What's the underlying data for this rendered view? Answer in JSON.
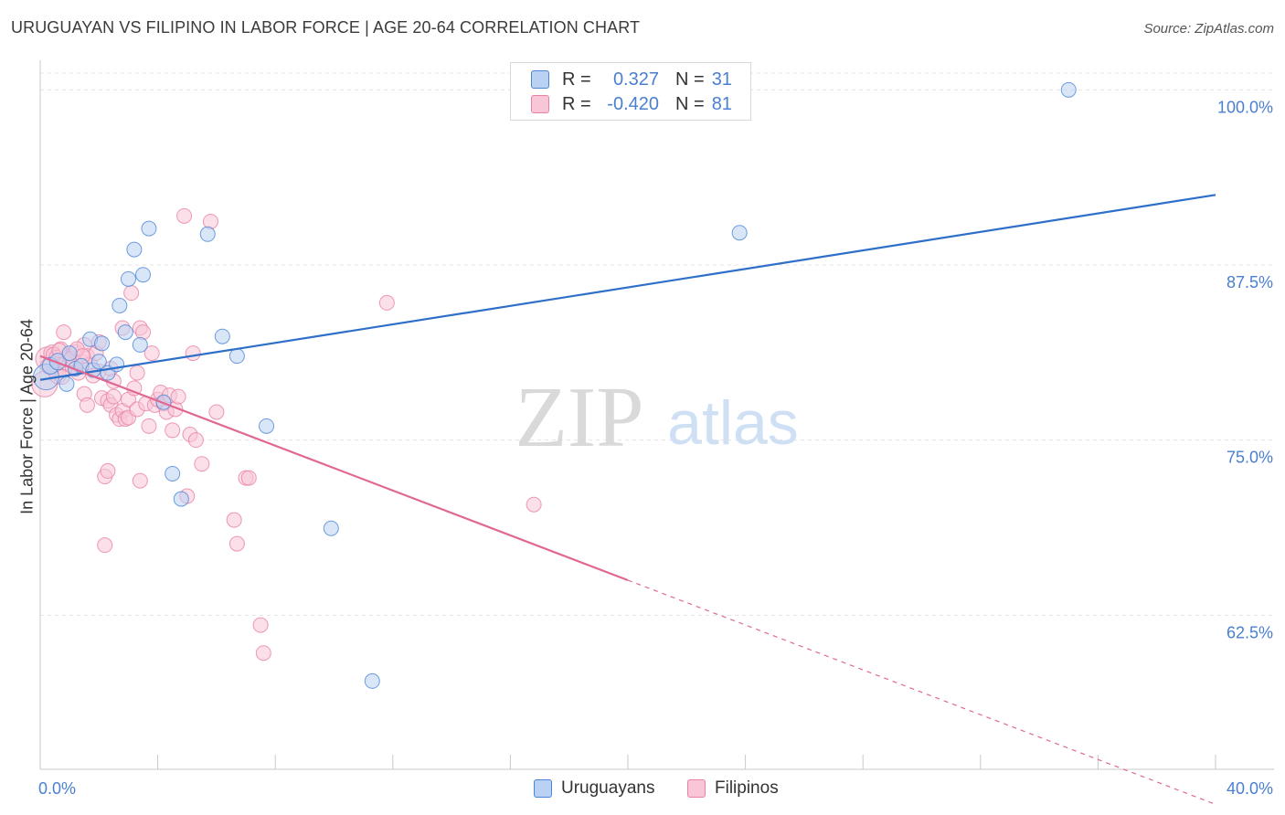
{
  "title": "URUGUAYAN VS FILIPINO IN LABOR FORCE | AGE 20-64 CORRELATION CHART",
  "source": "Source: ZipAtlas.com",
  "watermark": {
    "zip": "ZIP",
    "atlas": "atlas"
  },
  "legend": {
    "rows": [
      {
        "r_label": "R =",
        "r_value": "0.327",
        "n_label": "N =",
        "n_value": "31"
      },
      {
        "r_label": "R =",
        "r_value": "-0.420",
        "n_label": "N =",
        "n_value": "81"
      }
    ]
  },
  "bottom_legend": {
    "series1": "Uruguayans",
    "series2": "Filipinos"
  },
  "colors": {
    "blue": "#4a86d8",
    "blue_fill": "#b9d2f3",
    "blue_line": "#2e6fc9",
    "pink": "#ea80a5",
    "pink_fill": "#f8c6d7",
    "pink_line": "#e06892",
    "tick_label": "#4a7fd0",
    "grid": "#e4e4e4"
  },
  "chart_data": {
    "type": "scatter",
    "title": "URUGUAYAN VS FILIPINO IN LABOR FORCE | AGE 20-64 CORRELATION CHART",
    "xlabel": "",
    "ylabel": "In Labor Force | Age 20-64",
    "xlim": [
      0,
      40
    ],
    "ylim": [
      51.5,
      102.5
    ],
    "x_tick_labels": [
      "0.0%",
      "40.0%"
    ],
    "y_ticks": [
      {
        "value": 100,
        "label": "100.0%"
      },
      {
        "value": 87.5,
        "label": "87.5%"
      },
      {
        "value": 75,
        "label": "75.0%"
      },
      {
        "value": 62.5,
        "label": "62.5%"
      }
    ],
    "grid": true,
    "series": [
      {
        "name": "Uruguayans",
        "r": 0.327,
        "n": 31,
        "trend": {
          "x0": 0,
          "y0": 79.3,
          "x1": 40,
          "y1": 92.5
        },
        "points": [
          [
            0.2,
            79.5,
            14
          ],
          [
            0.35,
            80.3,
            9
          ],
          [
            0.6,
            80.6,
            9
          ],
          [
            0.9,
            79.0,
            8
          ],
          [
            1.0,
            81.2,
            8
          ],
          [
            1.2,
            80.1,
            8
          ],
          [
            1.4,
            80.3,
            8
          ],
          [
            1.7,
            82.2,
            8
          ],
          [
            1.8,
            80.0,
            8
          ],
          [
            2.0,
            80.6,
            8
          ],
          [
            2.1,
            81.9,
            8
          ],
          [
            2.3,
            79.8,
            8
          ],
          [
            2.6,
            80.4,
            8
          ],
          [
            2.7,
            84.6,
            8
          ],
          [
            2.9,
            82.7,
            8
          ],
          [
            3.0,
            86.5,
            8
          ],
          [
            3.2,
            88.6,
            8
          ],
          [
            3.4,
            81.8,
            8
          ],
          [
            3.5,
            86.8,
            8
          ],
          [
            3.7,
            90.1,
            8
          ],
          [
            4.2,
            77.7,
            8
          ],
          [
            4.5,
            72.6,
            8
          ],
          [
            4.8,
            70.8,
            8
          ],
          [
            5.7,
            89.7,
            8
          ],
          [
            6.2,
            82.4,
            8
          ],
          [
            6.7,
            81.0,
            8
          ],
          [
            7.7,
            76.0,
            8
          ],
          [
            9.9,
            68.7,
            8
          ],
          [
            11.3,
            57.8,
            8
          ],
          [
            23.8,
            89.8,
            8
          ],
          [
            35.0,
            100.0,
            8
          ]
        ]
      },
      {
        "name": "Filipinos",
        "r": -0.42,
        "n": 81,
        "trend": {
          "x0": 0,
          "y0": 81.0,
          "x1": 20,
          "y1": 65.0,
          "dash_x1": 40,
          "dash_y1": 49.0
        },
        "points": [
          [
            0.15,
            79.0,
            14
          ],
          [
            0.25,
            80.8,
            13
          ],
          [
            0.4,
            81.2,
            9
          ],
          [
            0.5,
            80.0,
            9
          ],
          [
            0.6,
            79.6,
            9
          ],
          [
            0.7,
            81.5,
            8
          ],
          [
            0.8,
            82.7,
            8
          ],
          [
            0.9,
            80.5,
            8
          ],
          [
            1.0,
            81.0,
            8
          ],
          [
            1.1,
            80.2,
            8
          ],
          [
            1.2,
            81.3,
            8
          ],
          [
            1.3,
            79.8,
            8
          ],
          [
            1.4,
            80.6,
            8
          ],
          [
            1.5,
            81.8,
            8
          ],
          [
            1.6,
            81.0,
            8
          ],
          [
            1.7,
            80.4,
            8
          ],
          [
            1.5,
            78.3,
            8
          ],
          [
            1.6,
            77.5,
            8
          ],
          [
            1.8,
            79.6,
            8
          ],
          [
            1.9,
            81.2,
            8
          ],
          [
            2.0,
            82.0,
            8
          ],
          [
            2.0,
            79.9,
            8
          ],
          [
            2.1,
            78.0,
            8
          ],
          [
            2.2,
            67.5,
            8
          ],
          [
            2.3,
            77.8,
            8
          ],
          [
            2.4,
            80.1,
            8
          ],
          [
            2.5,
            79.2,
            8
          ],
          [
            2.2,
            72.4,
            8
          ],
          [
            2.3,
            72.8,
            8
          ],
          [
            2.4,
            77.5,
            8
          ],
          [
            2.5,
            78.1,
            8
          ],
          [
            2.6,
            76.8,
            8
          ],
          [
            2.7,
            76.5,
            8
          ],
          [
            2.8,
            83.0,
            8
          ],
          [
            2.8,
            77.1,
            8
          ],
          [
            2.9,
            76.5,
            8
          ],
          [
            3.0,
            77.9,
            8
          ],
          [
            3.0,
            76.6,
            8
          ],
          [
            3.1,
            85.5,
            8
          ],
          [
            3.2,
            78.7,
            8
          ],
          [
            3.3,
            79.8,
            8
          ],
          [
            3.3,
            77.2,
            8
          ],
          [
            3.4,
            83.0,
            8
          ],
          [
            3.5,
            82.7,
            8
          ],
          [
            3.4,
            72.1,
            8
          ],
          [
            3.6,
            77.6,
            8
          ],
          [
            3.7,
            76.0,
            8
          ],
          [
            3.8,
            81.2,
            8
          ],
          [
            3.9,
            77.5,
            8
          ],
          [
            4.0,
            77.9,
            8
          ],
          [
            4.1,
            78.4,
            8
          ],
          [
            4.2,
            77.6,
            8
          ],
          [
            4.3,
            77.0,
            8
          ],
          [
            4.4,
            78.2,
            8
          ],
          [
            4.5,
            75.7,
            8
          ],
          [
            4.6,
            77.2,
            8
          ],
          [
            4.7,
            78.1,
            8
          ],
          [
            4.9,
            91.0,
            8
          ],
          [
            5.0,
            71.0,
            8
          ],
          [
            5.1,
            75.4,
            8
          ],
          [
            5.2,
            81.2,
            8
          ],
          [
            5.3,
            75.0,
            8
          ],
          [
            5.5,
            73.3,
            8
          ],
          [
            5.8,
            90.6,
            8
          ],
          [
            6.0,
            77.0,
            8
          ],
          [
            6.6,
            69.3,
            8
          ],
          [
            6.7,
            67.6,
            8
          ],
          [
            7.0,
            72.3,
            8
          ],
          [
            7.1,
            72.3,
            8
          ],
          [
            7.5,
            61.8,
            8
          ],
          [
            7.6,
            59.8,
            8
          ],
          [
            11.8,
            84.8,
            8
          ],
          [
            16.8,
            70.4,
            8
          ],
          [
            0.3,
            80.3,
            9
          ],
          [
            0.45,
            81.1,
            8
          ],
          [
            0.55,
            80.9,
            8
          ],
          [
            0.65,
            81.4,
            8
          ],
          [
            0.75,
            79.5,
            8
          ],
          [
            1.05,
            80.8,
            8
          ],
          [
            1.25,
            81.5,
            8
          ],
          [
            1.45,
            81.0,
            8
          ]
        ]
      }
    ]
  }
}
